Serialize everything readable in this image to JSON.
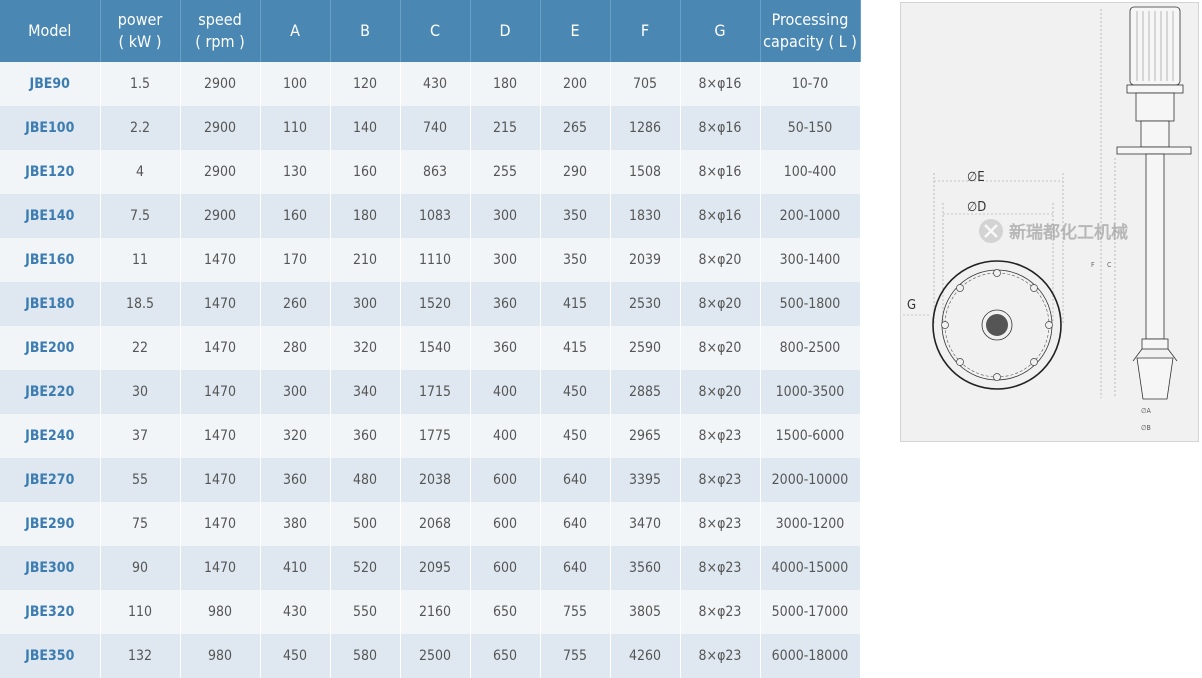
{
  "table": {
    "headers": [
      "Model",
      "power\n( kW )",
      "speed\n( rpm )",
      "A",
      "B",
      "C",
      "D",
      "E",
      "F",
      "G",
      "Processing\ncapacity ( L )"
    ],
    "rows": [
      [
        "JBE90",
        "1.5",
        "2900",
        "100",
        "120",
        "430",
        "180",
        "200",
        "705",
        "8×φ16",
        "10-70"
      ],
      [
        "JBE100",
        "2.2",
        "2900",
        "110",
        "140",
        "740",
        "215",
        "265",
        "1286",
        "8×φ16",
        "50-150"
      ],
      [
        "JBE120",
        "4",
        "2900",
        "130",
        "160",
        "863",
        "255",
        "290",
        "1508",
        "8×φ16",
        "100-400"
      ],
      [
        "JBE140",
        "7.5",
        "2900",
        "160",
        "180",
        "1083",
        "300",
        "350",
        "1830",
        "8×φ16",
        "200-1000"
      ],
      [
        "JBE160",
        "11",
        "1470",
        "170",
        "210",
        "1110",
        "300",
        "350",
        "2039",
        "8×φ20",
        "300-1400"
      ],
      [
        "JBE180",
        "18.5",
        "1470",
        "260",
        "300",
        "1520",
        "360",
        "415",
        "2530",
        "8×φ20",
        "500-1800"
      ],
      [
        "JBE200",
        "22",
        "1470",
        "280",
        "320",
        "1540",
        "360",
        "415",
        "2590",
        "8×φ20",
        "800-2500"
      ],
      [
        "JBE220",
        "30",
        "1470",
        "300",
        "340",
        "1715",
        "400",
        "450",
        "2885",
        "8×φ20",
        "1000-3500"
      ],
      [
        "JBE240",
        "37",
        "1470",
        "320",
        "360",
        "1775",
        "400",
        "450",
        "2965",
        "8×φ23",
        "1500-6000"
      ],
      [
        "JBE270",
        "55",
        "1470",
        "360",
        "480",
        "2038",
        "600",
        "640",
        "3395",
        "8×φ23",
        "2000-10000"
      ],
      [
        "JBE290",
        "75",
        "1470",
        "380",
        "500",
        "2068",
        "600",
        "640",
        "3470",
        "8×φ23",
        "3000-1200"
      ],
      [
        "JBE300",
        "90",
        "1470",
        "410",
        "520",
        "2095",
        "600",
        "640",
        "3560",
        "8×φ23",
        "4000-15000"
      ],
      [
        "JBE320",
        "110",
        "980",
        "430",
        "550",
        "2160",
        "650",
        "755",
        "3805",
        "8×φ23",
        "5000-17000"
      ],
      [
        "JBE350",
        "132",
        "980",
        "450",
        "580",
        "2500",
        "650",
        "755",
        "4260",
        "8×φ23",
        "6000-18000"
      ]
    ]
  },
  "diagram": {
    "labels": {
      "E": "∅E",
      "D": "∅D",
      "G": "G",
      "F": "F",
      "C": "C",
      "A": "∅A",
      "B": "∅B"
    },
    "watermark": "新瑞都化工机械"
  },
  "colors": {
    "header": "#4a88b3",
    "model_text": "#3c7cb0",
    "alt_row": "#dfe8f0"
  }
}
